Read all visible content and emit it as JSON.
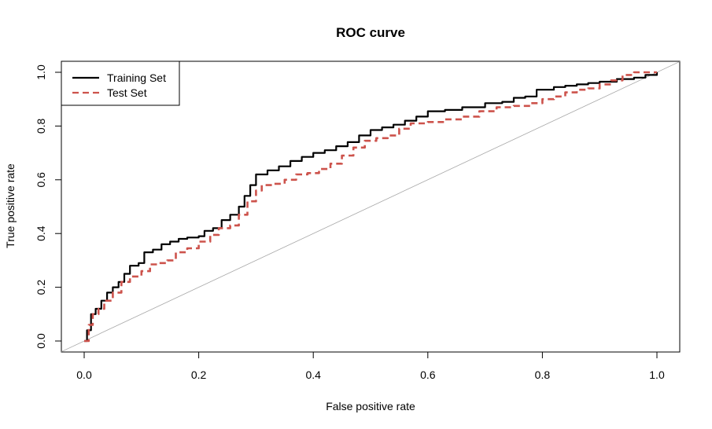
{
  "chart_data": {
    "type": "line",
    "title": "ROC curve",
    "xlabel": "False positive rate",
    "ylabel": "True positive rate",
    "xlim": [
      0,
      1
    ],
    "ylim": [
      0,
      1
    ],
    "grid": false,
    "legend_placement": "top-left",
    "x_ticks": [
      "0.0",
      "0.2",
      "0.4",
      "0.6",
      "0.8",
      "1.0"
    ],
    "y_ticks": [
      "0.0",
      "0.2",
      "0.4",
      "0.6",
      "0.8",
      "1.0"
    ],
    "reference_line": {
      "from": [
        0,
        0
      ],
      "to": [
        1,
        1
      ],
      "color": "#a6a6a6"
    },
    "series": [
      {
        "name": "Training Set",
        "color": "#000000",
        "dash": "solid",
        "points": [
          [
            0,
            0
          ],
          [
            0.005,
            0.04
          ],
          [
            0.012,
            0.1
          ],
          [
            0.02,
            0.12
          ],
          [
            0.03,
            0.15
          ],
          [
            0.04,
            0.18
          ],
          [
            0.05,
            0.2
          ],
          [
            0.06,
            0.22
          ],
          [
            0.07,
            0.25
          ],
          [
            0.08,
            0.28
          ],
          [
            0.095,
            0.29
          ],
          [
            0.105,
            0.33
          ],
          [
            0.12,
            0.34
          ],
          [
            0.135,
            0.36
          ],
          [
            0.15,
            0.37
          ],
          [
            0.165,
            0.38
          ],
          [
            0.18,
            0.385
          ],
          [
            0.2,
            0.39
          ],
          [
            0.21,
            0.41
          ],
          [
            0.225,
            0.42
          ],
          [
            0.24,
            0.45
          ],
          [
            0.255,
            0.47
          ],
          [
            0.27,
            0.5
          ],
          [
            0.28,
            0.54
          ],
          [
            0.29,
            0.58
          ],
          [
            0.3,
            0.62
          ],
          [
            0.32,
            0.635
          ],
          [
            0.34,
            0.65
          ],
          [
            0.36,
            0.67
          ],
          [
            0.38,
            0.685
          ],
          [
            0.4,
            0.7
          ],
          [
            0.42,
            0.71
          ],
          [
            0.44,
            0.725
          ],
          [
            0.46,
            0.74
          ],
          [
            0.48,
            0.765
          ],
          [
            0.5,
            0.785
          ],
          [
            0.52,
            0.795
          ],
          [
            0.54,
            0.805
          ],
          [
            0.56,
            0.82
          ],
          [
            0.58,
            0.835
          ],
          [
            0.6,
            0.855
          ],
          [
            0.63,
            0.86
          ],
          [
            0.66,
            0.87
          ],
          [
            0.7,
            0.885
          ],
          [
            0.73,
            0.89
          ],
          [
            0.75,
            0.905
          ],
          [
            0.77,
            0.91
          ],
          [
            0.79,
            0.935
          ],
          [
            0.82,
            0.945
          ],
          [
            0.84,
            0.95
          ],
          [
            0.86,
            0.955
          ],
          [
            0.88,
            0.96
          ],
          [
            0.9,
            0.965
          ],
          [
            0.93,
            0.975
          ],
          [
            0.96,
            0.98
          ],
          [
            0.98,
            0.99
          ],
          [
            1.0,
            1.0
          ]
        ]
      },
      {
        "name": "Test Set",
        "color": "#cd534c",
        "dash": "dashed",
        "points": [
          [
            0,
            0
          ],
          [
            0.008,
            0.06
          ],
          [
            0.015,
            0.1
          ],
          [
            0.025,
            0.12
          ],
          [
            0.035,
            0.15
          ],
          [
            0.05,
            0.18
          ],
          [
            0.065,
            0.22
          ],
          [
            0.08,
            0.24
          ],
          [
            0.1,
            0.26
          ],
          [
            0.115,
            0.285
          ],
          [
            0.13,
            0.29
          ],
          [
            0.145,
            0.3
          ],
          [
            0.16,
            0.33
          ],
          [
            0.18,
            0.345
          ],
          [
            0.2,
            0.37
          ],
          [
            0.22,
            0.395
          ],
          [
            0.235,
            0.42
          ],
          [
            0.255,
            0.43
          ],
          [
            0.27,
            0.47
          ],
          [
            0.285,
            0.52
          ],
          [
            0.3,
            0.56
          ],
          [
            0.31,
            0.58
          ],
          [
            0.33,
            0.585
          ],
          [
            0.35,
            0.6
          ],
          [
            0.37,
            0.62
          ],
          [
            0.39,
            0.625
          ],
          [
            0.41,
            0.64
          ],
          [
            0.43,
            0.66
          ],
          [
            0.45,
            0.69
          ],
          [
            0.47,
            0.72
          ],
          [
            0.49,
            0.745
          ],
          [
            0.51,
            0.755
          ],
          [
            0.53,
            0.765
          ],
          [
            0.55,
            0.79
          ],
          [
            0.57,
            0.81
          ],
          [
            0.6,
            0.815
          ],
          [
            0.63,
            0.825
          ],
          [
            0.66,
            0.835
          ],
          [
            0.69,
            0.855
          ],
          [
            0.72,
            0.87
          ],
          [
            0.75,
            0.875
          ],
          [
            0.78,
            0.885
          ],
          [
            0.8,
            0.9
          ],
          [
            0.82,
            0.91
          ],
          [
            0.84,
            0.925
          ],
          [
            0.86,
            0.935
          ],
          [
            0.88,
            0.94
          ],
          [
            0.9,
            0.955
          ],
          [
            0.92,
            0.97
          ],
          [
            0.94,
            0.99
          ],
          [
            0.96,
            1.0
          ],
          [
            1.0,
            1.0
          ]
        ]
      }
    ]
  }
}
